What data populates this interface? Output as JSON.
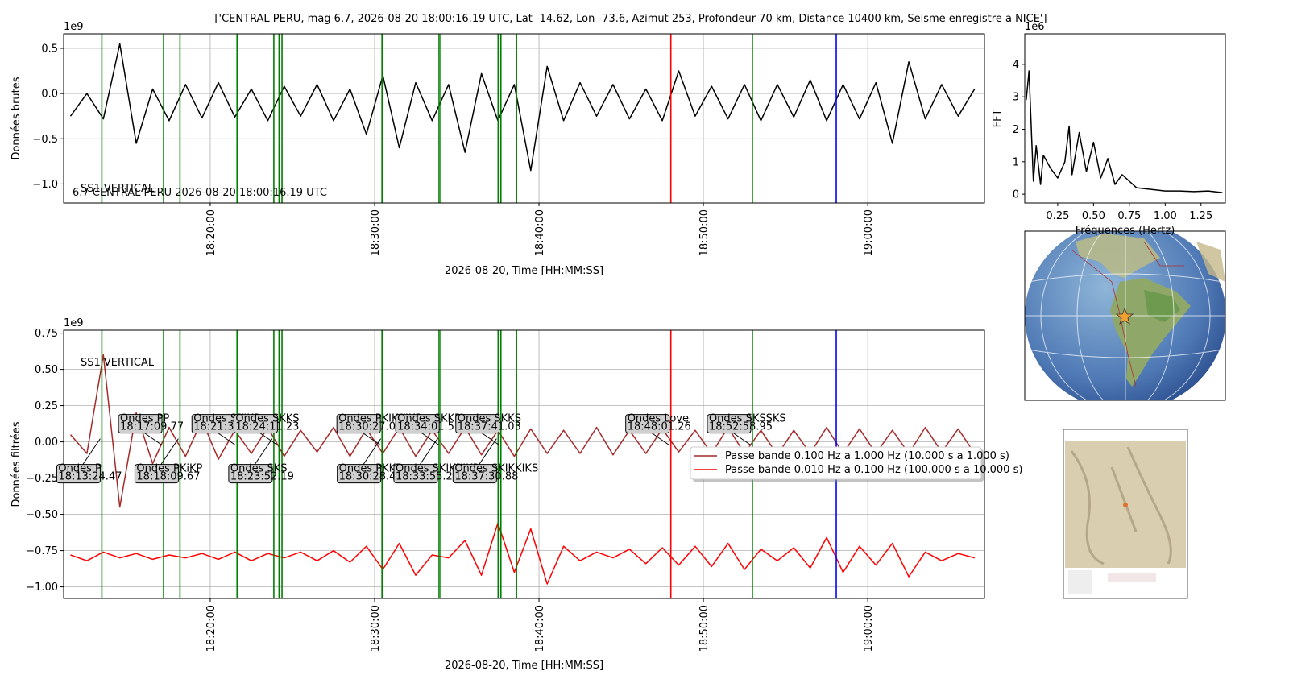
{
  "chart_data": [
    {
      "type": "line",
      "title": "['CENTRAL PERU, mag 6.7, 2026-08-20 18:00:16.19 UTC, Lat -14.62, Lon -73.6, Azimut 253, Profondeur 70 km, Distance 10400 km, Seisme enregistre a NICE']",
      "annotation": "6.7 CENTRAL PERU 2026-08-20 18:00:16.19 UTC",
      "trace_label": "SS1 VERTICAL",
      "xlabel": "2026-08-20, Time [HH:MM:SS]",
      "ylabel": "Données brutes",
      "y_offset_label": "1e9",
      "x": [
        "18:11:30",
        "18:12:30",
        "18:13:30",
        "18:14:30",
        "18:15:30",
        "18:16:30",
        "18:17:30",
        "18:18:30",
        "18:19:30",
        "18:20:30",
        "18:21:30",
        "18:22:30",
        "18:23:30",
        "18:24:30",
        "18:25:30",
        "18:26:30",
        "18:27:30",
        "18:28:30",
        "18:29:30",
        "18:30:30",
        "18:31:30",
        "18:32:30",
        "18:33:30",
        "18:34:30",
        "18:35:30",
        "18:36:30",
        "18:37:30",
        "18:38:30",
        "18:39:30",
        "18:40:30",
        "18:41:30",
        "18:42:30",
        "18:43:30",
        "18:44:30",
        "18:45:30",
        "18:46:30",
        "18:47:30",
        "18:48:30",
        "18:49:30",
        "18:50:30",
        "18:51:30",
        "18:52:30",
        "18:53:30",
        "18:54:30",
        "18:55:30",
        "18:56:30",
        "18:57:30",
        "18:58:30",
        "18:59:30",
        "19:00:30",
        "19:01:30",
        "19:02:30",
        "19:03:30",
        "19:04:30",
        "19:05:30",
        "19:06:30"
      ],
      "series": [
        {
          "color": "#000000",
          "values": [
            -0.25,
            0.0,
            -0.28,
            0.55,
            -0.55,
            0.05,
            -0.3,
            0.1,
            -0.27,
            0.12,
            -0.26,
            0.05,
            -0.3,
            0.08,
            -0.25,
            0.1,
            -0.3,
            0.05,
            -0.45,
            0.2,
            -0.6,
            0.12,
            -0.3,
            0.1,
            -0.65,
            0.22,
            -0.3,
            0.1,
            -0.85,
            0.3,
            -0.3,
            0.12,
            -0.25,
            0.1,
            -0.28,
            0.05,
            -0.3,
            0.25,
            -0.25,
            0.08,
            -0.28,
            0.1,
            -0.3,
            0.1,
            -0.26,
            0.15,
            -0.3,
            0.1,
            -0.28,
            0.12,
            -0.55,
            0.35,
            -0.28,
            0.1,
            -0.25,
            0.05
          ]
        }
      ],
      "xlim": [
        "18:11:05",
        "19:07:06"
      ],
      "xticks": [
        "18:20:00",
        "18:30:00",
        "18:40:00",
        "18:50:00",
        "19:00:00"
      ],
      "ylim": [
        -1.21,
        0.66
      ],
      "yticks": [
        {
          "value": -1,
          "label": "−1.0"
        },
        {
          "value": -0.5,
          "label": "−0.5"
        },
        {
          "value": 0,
          "label": "0.0"
        },
        0.5
      ],
      "grid": true
    },
    {
      "type": "line",
      "xlabel": "Fréquences (Hertz)",
      "ylabel": "FFT",
      "y_offset_label": "1e6",
      "x": [
        0.03,
        0.05,
        0.08,
        0.1,
        0.13,
        0.15,
        0.2,
        0.25,
        0.3,
        0.33,
        0.35,
        0.4,
        0.45,
        0.5,
        0.55,
        0.6,
        0.65,
        0.7,
        0.8,
        0.9,
        1.0,
        1.1,
        1.2,
        1.3,
        1.4
      ],
      "series": [
        {
          "color": "#000000",
          "values": [
            2.9,
            3.8,
            0.4,
            1.5,
            0.3,
            1.2,
            0.8,
            0.5,
            1.0,
            2.1,
            0.6,
            1.9,
            0.7,
            1.6,
            0.5,
            1.1,
            0.3,
            0.6,
            0.2,
            0.15,
            0.1,
            0.1,
            0.08,
            0.1,
            0.05
          ]
        }
      ],
      "xlim": [
        0.02,
        1.42
      ],
      "xticks": [
        0.25,
        {
          "value": 0.5,
          "label": "0.50"
        },
        0.75,
        {
          "value": 1,
          "label": "1.00"
        },
        1.25
      ],
      "ylim": [
        -0.27,
        4.94
      ],
      "yticks": [
        0,
        1,
        2,
        3,
        4
      ],
      "grid": false
    },
    {
      "type": "line",
      "trace_label": "SS1 VERTICAL",
      "xlabel": "2026-08-20, Time [HH:MM:SS]",
      "ylabel": "Données filtrées",
      "y_offset_label": "1e9",
      "x": [
        "18:11:30",
        "18:12:30",
        "18:13:30",
        "18:14:30",
        "18:15:30",
        "18:16:30",
        "18:17:30",
        "18:18:30",
        "18:19:30",
        "18:20:30",
        "18:21:30",
        "18:22:30",
        "18:23:30",
        "18:24:30",
        "18:25:30",
        "18:26:30",
        "18:27:30",
        "18:28:30",
        "18:29:30",
        "18:30:30",
        "18:31:30",
        "18:32:30",
        "18:33:30",
        "18:34:30",
        "18:35:30",
        "18:36:30",
        "18:37:30",
        "18:38:30",
        "18:39:30",
        "18:40:30",
        "18:41:30",
        "18:42:30",
        "18:43:30",
        "18:44:30",
        "18:45:30",
        "18:46:30",
        "18:47:30",
        "18:48:30",
        "18:49:30",
        "18:50:30",
        "18:51:30",
        "18:52:30",
        "18:53:30",
        "18:54:30",
        "18:55:30",
        "18:56:30",
        "18:57:30",
        "18:58:30",
        "18:59:30",
        "19:00:30",
        "19:01:30",
        "19:02:30",
        "19:03:30",
        "19:04:30",
        "19:05:30",
        "19:06:30"
      ],
      "series": [
        {
          "name": "Passe bande 0.100 Hz a 1.000 Hz (10.000 s a 1.000 s)",
          "color": "#a52a2a",
          "values": [
            0.05,
            -0.08,
            0.6,
            -0.45,
            0.2,
            -0.15,
            0.1,
            -0.1,
            0.15,
            -0.12,
            0.08,
            -0.08,
            0.1,
            -0.1,
            0.08,
            -0.07,
            0.1,
            -0.1,
            0.09,
            -0.08,
            0.1,
            -0.1,
            0.08,
            -0.08,
            0.1,
            -0.09,
            0.08,
            -0.1,
            0.09,
            -0.08,
            0.08,
            -0.08,
            0.1,
            -0.09,
            0.08,
            -0.08,
            0.09,
            -0.07,
            0.08,
            -0.08,
            0.1,
            -0.08,
            0.08,
            -0.09,
            0.08,
            -0.08,
            0.1,
            -0.08,
            0.09,
            -0.08,
            0.08,
            -0.08,
            0.1,
            -0.07,
            0.09,
            -0.08
          ]
        },
        {
          "name": "Passe bande 0.010 Hz a 0.100 Hz (100.000 s a 10.000 s)",
          "color": "#ff0000",
          "values": [
            -0.78,
            -0.82,
            -0.76,
            -0.8,
            -0.77,
            -0.81,
            -0.78,
            -0.8,
            -0.77,
            -0.81,
            -0.76,
            -0.82,
            -0.77,
            -0.8,
            -0.76,
            -0.82,
            -0.75,
            -0.83,
            -0.72,
            -0.88,
            -0.7,
            -0.92,
            -0.78,
            -0.8,
            -0.68,
            -0.92,
            -0.56,
            -0.9,
            -0.6,
            -0.98,
            -0.72,
            -0.82,
            -0.76,
            -0.8,
            -0.74,
            -0.84,
            -0.73,
            -0.85,
            -0.72,
            -0.86,
            -0.7,
            -0.88,
            -0.74,
            -0.82,
            -0.73,
            -0.87,
            -0.66,
            -0.9,
            -0.72,
            -0.85,
            -0.7,
            -0.93,
            -0.76,
            -0.82,
            -0.77,
            -0.8
          ]
        }
      ],
      "legend": "center right",
      "phases": [
        {
          "label": "Ondes P",
          "time": "18:13:24.47",
          "color": "green"
        },
        {
          "label": "Ondes PP",
          "time": "18:17:09.77",
          "color": "green"
        },
        {
          "label": "Ondes PKiKP",
          "time": "18:18:09.67",
          "color": "green"
        },
        {
          "label": "Ondes SKiKP",
          "time": "18:21:37.92",
          "color": "green"
        },
        {
          "label": "Ondes SKS",
          "time": "18:23:52.19",
          "color": "green"
        },
        {
          "label": "Ondes SKKS",
          "time": "18:24:11.23",
          "color": "green"
        },
        {
          "label": "Ondes PKKP",
          "time": "18:30:28.43",
          "color": "green"
        },
        {
          "label": "Ondes PKIKKIKP",
          "time": "18:30:27.03",
          "color": "green"
        },
        {
          "label": "Ondes SKIKKIKP",
          "time": "18:33:55.20",
          "color": "green"
        },
        {
          "label": "Ondes SKKP",
          "time": "18:34:01.51",
          "color": "green"
        },
        {
          "label": "Ondes SKIKKIKS",
          "time": "18:37:30.88",
          "color": "green"
        },
        {
          "label": "Ondes SKKS",
          "time": "18:37:41.03",
          "color": "green"
        },
        {
          "label": "Ondes Love",
          "time": "18:48:01.26",
          "color": "red"
        },
        {
          "label": "Ondes SKSSKS",
          "time": "18:52:58.95",
          "color": "green"
        },
        {
          "label": null,
          "time": "18:24:22",
          "color": "green"
        },
        {
          "label": null,
          "time": "18:38:38",
          "color": "green"
        },
        {
          "label": null,
          "time": "18:58:05",
          "color": "blue"
        }
      ],
      "xlim": [
        "18:11:05",
        "19:07:06"
      ],
      "xticks": [
        "18:20:00",
        "18:30:00",
        "18:40:00",
        "18:50:00",
        "19:00:00"
      ],
      "ylim": [
        -1.08,
        0.77
      ],
      "yticks": [
        {
          "value": -1,
          "label": "−1.00"
        },
        {
          "value": -0.75,
          "label": "−0.75"
        },
        {
          "value": -0.5,
          "label": "−0.50"
        },
        {
          "value": -0.25,
          "label": "−0.25"
        },
        {
          "value": 0,
          "label": "0.00"
        },
        0.25,
        {
          "value": 0.5,
          "label": "0.50"
        },
        0.75
      ],
      "grid": true
    }
  ]
}
